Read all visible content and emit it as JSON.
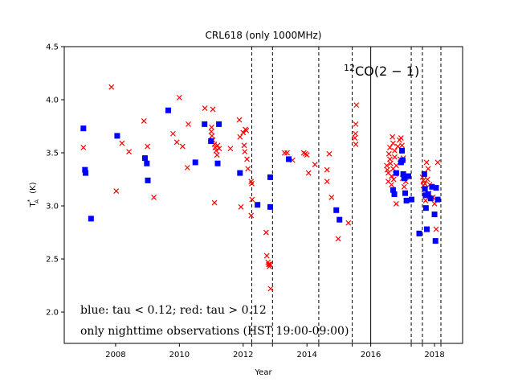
{
  "chart_data": {
    "type": "scatter",
    "title": "CRL618 (only 1000MHz)",
    "xlabel": "Year",
    "ylabel": "T_A^* (K)",
    "xlim": [
      2006.39,
      2018.88
    ],
    "ylim": [
      1.705,
      4.5
    ],
    "grid": false,
    "x_ticks": [
      2008,
      2010,
      2012,
      2014,
      2016,
      2018
    ],
    "x_tick_labels": [
      "2008",
      "2010",
      "2012",
      "2014",
      "2016",
      "2018"
    ],
    "y_ticks": [
      2.0,
      2.5,
      3.0,
      3.5,
      4.0,
      4.5
    ],
    "y_tick_labels": [
      "2.0",
      "2.5",
      "3.0",
      "3.5",
      "4.0",
      "4.5"
    ],
    "extra_x_ticks": [
      2012.27,
      2012.92,
      2014.37,
      2015.42,
      2017.27,
      2017.62,
      2018.2
    ],
    "vertical_lines": {
      "solid": [
        2016.0
      ],
      "dashed": [
        2012.27,
        2012.92,
        2014.37,
        2015.42,
        2017.27,
        2017.62,
        2018.2
      ]
    },
    "annotations": {
      "line_label": "CO(2 − 1)",
      "line_label_superscript": "12",
      "tau_note": "blue: tau < 0.12; red: tau > 0.12",
      "night_note": "only nighttime observations (HST 19:00-09:00)"
    },
    "series": [
      {
        "name": "tau < 0.12",
        "color": "#0000ff",
        "marker": "square",
        "points": [
          [
            2006.99,
            3.73
          ],
          [
            2007.04,
            3.34
          ],
          [
            2007.06,
            3.31
          ],
          [
            2007.23,
            2.88
          ],
          [
            2008.05,
            3.66
          ],
          [
            2008.92,
            3.45
          ],
          [
            2008.98,
            3.4
          ],
          [
            2009.01,
            3.24
          ],
          [
            2009.65,
            3.9
          ],
          [
            2010.5,
            3.41
          ],
          [
            2010.79,
            3.77
          ],
          [
            2010.99,
            3.61
          ],
          [
            2011.2,
            3.4
          ],
          [
            2011.24,
            3.77
          ],
          [
            2011.9,
            3.31
          ],
          [
            2012.45,
            3.01
          ],
          [
            2012.85,
            3.27
          ],
          [
            2012.85,
            2.99
          ],
          [
            2013.43,
            3.44
          ],
          [
            2014.92,
            2.96
          ],
          [
            2015.02,
            2.87
          ],
          [
            2016.7,
            3.15
          ],
          [
            2016.74,
            3.11
          ],
          [
            2016.8,
            3.31
          ],
          [
            2016.95,
            3.41
          ],
          [
            2016.98,
            3.52
          ],
          [
            2017.0,
            3.43
          ],
          [
            2017.02,
            3.3
          ],
          [
            2017.05,
            3.26
          ],
          [
            2017.08,
            3.12
          ],
          [
            2017.12,
            3.05
          ],
          [
            2017.18,
            3.28
          ],
          [
            2017.28,
            3.06
          ],
          [
            2017.52,
            2.74
          ],
          [
            2017.68,
            3.3
          ],
          [
            2017.7,
            3.16
          ],
          [
            2017.72,
            3.1
          ],
          [
            2017.73,
            2.98
          ],
          [
            2017.76,
            2.78
          ],
          [
            2017.8,
            3.11
          ],
          [
            2017.88,
            3.07
          ],
          [
            2017.92,
            3.18
          ],
          [
            2018.0,
            2.92
          ],
          [
            2018.03,
            2.67
          ],
          [
            2018.05,
            3.17
          ],
          [
            2018.1,
            3.06
          ]
        ]
      },
      {
        "name": "tau > 0.12",
        "color": "#ff0000",
        "marker": "x",
        "points": [
          [
            2006.99,
            3.55
          ],
          [
            2007.87,
            4.12
          ],
          [
            2008.02,
            3.14
          ],
          [
            2008.2,
            3.59
          ],
          [
            2008.42,
            3.51
          ],
          [
            2008.89,
            3.8
          ],
          [
            2009.0,
            3.56
          ],
          [
            2009.2,
            3.08
          ],
          [
            2009.8,
            3.68
          ],
          [
            2009.92,
            3.6
          ],
          [
            2010.0,
            4.02
          ],
          [
            2010.1,
            3.56
          ],
          [
            2010.25,
            3.36
          ],
          [
            2010.28,
            3.77
          ],
          [
            2010.8,
            3.92
          ],
          [
            2011.01,
            3.74
          ],
          [
            2011.0,
            3.7
          ],
          [
            2011.02,
            3.66
          ],
          [
            2011.05,
            3.62
          ],
          [
            2011.1,
            3.58
          ],
          [
            2011.12,
            3.55
          ],
          [
            2011.15,
            3.52
          ],
          [
            2011.18,
            3.48
          ],
          [
            2011.1,
            3.03
          ],
          [
            2011.05,
            3.91
          ],
          [
            2011.2,
            3.57
          ],
          [
            2011.25,
            3.54
          ],
          [
            2011.6,
            3.54
          ],
          [
            2011.88,
            3.81
          ],
          [
            2011.9,
            3.65
          ],
          [
            2011.93,
            2.99
          ],
          [
            2012.0,
            3.69
          ],
          [
            2012.03,
            3.57
          ],
          [
            2012.05,
            3.51
          ],
          [
            2012.07,
            3.72
          ],
          [
            2012.1,
            3.71
          ],
          [
            2012.12,
            3.44
          ],
          [
            2012.15,
            3.35
          ],
          [
            2012.25,
            3.23
          ],
          [
            2012.27,
            3.21
          ],
          [
            2012.28,
            3.06
          ],
          [
            2012.25,
            2.91
          ],
          [
            2012.72,
            2.75
          ],
          [
            2012.74,
            2.53
          ],
          [
            2012.78,
            2.47
          ],
          [
            2012.8,
            2.45
          ],
          [
            2012.82,
            2.43
          ],
          [
            2012.84,
            2.45
          ],
          [
            2012.86,
            2.22
          ],
          [
            2013.3,
            3.5
          ],
          [
            2013.38,
            3.5
          ],
          [
            2013.55,
            3.43
          ],
          [
            2013.9,
            3.5
          ],
          [
            2013.95,
            3.49
          ],
          [
            2014.0,
            3.48
          ],
          [
            2014.05,
            3.31
          ],
          [
            2014.25,
            3.39
          ],
          [
            2014.63,
            3.34
          ],
          [
            2014.63,
            3.23
          ],
          [
            2014.7,
            3.49
          ],
          [
            2014.77,
            3.08
          ],
          [
            2014.98,
            2.69
          ],
          [
            2015.3,
            2.84
          ],
          [
            2015.55,
            3.95
          ],
          [
            2015.53,
            3.77
          ],
          [
            2015.52,
            3.68
          ],
          [
            2015.5,
            3.64
          ],
          [
            2015.53,
            3.58
          ],
          [
            2016.5,
            3.38
          ],
          [
            2016.52,
            3.34
          ],
          [
            2016.55,
            3.31
          ],
          [
            2016.55,
            3.23
          ],
          [
            2016.57,
            3.49
          ],
          [
            2016.6,
            3.55
          ],
          [
            2016.6,
            3.44
          ],
          [
            2016.62,
            3.4
          ],
          [
            2016.65,
            3.28
          ],
          [
            2016.65,
            3.2
          ],
          [
            2016.68,
            3.65
          ],
          [
            2016.7,
            3.59
          ],
          [
            2016.7,
            3.35
          ],
          [
            2016.72,
            3.25
          ],
          [
            2016.75,
            3.52
          ],
          [
            2016.75,
            3.46
          ],
          [
            2016.77,
            3.3
          ],
          [
            2016.8,
            3.38
          ],
          [
            2016.8,
            3.02
          ],
          [
            2016.85,
            3.56
          ],
          [
            2016.9,
            3.62
          ],
          [
            2016.92,
            3.44
          ],
          [
            2016.95,
            3.64
          ],
          [
            2016.98,
            3.57
          ],
          [
            2017.0,
            3.26
          ],
          [
            2017.02,
            3.45
          ],
          [
            2017.05,
            3.18
          ],
          [
            2017.1,
            3.23
          ],
          [
            2017.62,
            3.27
          ],
          [
            2017.65,
            3.24
          ],
          [
            2017.65,
            3.19
          ],
          [
            2017.67,
            3.15
          ],
          [
            2017.7,
            3.21
          ],
          [
            2017.72,
            3.05
          ],
          [
            2017.75,
            3.41
          ],
          [
            2017.78,
            3.25
          ],
          [
            2017.8,
            3.35
          ],
          [
            2017.82,
            3.12
          ],
          [
            2017.85,
            3.2
          ],
          [
            2017.95,
            3.08
          ],
          [
            2018.0,
            3.02
          ],
          [
            2018.05,
            2.78
          ],
          [
            2018.1,
            3.41
          ]
        ]
      }
    ]
  }
}
